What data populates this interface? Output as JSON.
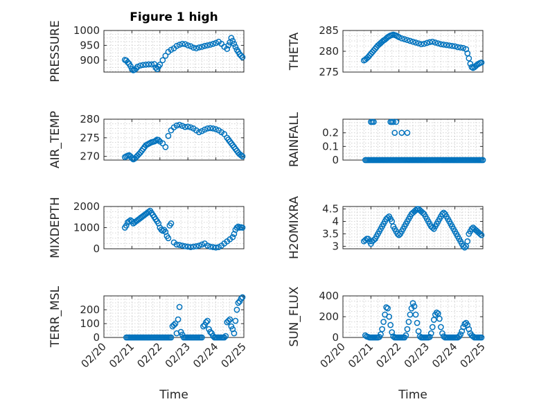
{
  "title": "Figure 1 high",
  "xlabel": "Time",
  "x_ticks": [
    "02/20",
    "02/21",
    "02/22",
    "02/23",
    "02/24",
    "02/25"
  ],
  "colors": {
    "marker": "#0072bd",
    "text": "#262626",
    "grid": "#c8c8c8"
  },
  "chart_data": [
    {
      "type": "scatter",
      "marker": "circle",
      "ylabel": "PRESSURE",
      "ylim": [
        860,
        1000
      ],
      "yticks": [
        900,
        950,
        1000
      ],
      "xlim": [
        0,
        5
      ],
      "x": [
        0.75,
        0.8,
        0.85,
        0.9,
        0.95,
        1.0,
        1.05,
        1.1,
        1.15,
        1.2,
        1.3,
        1.4,
        1.5,
        1.6,
        1.7,
        1.8,
        1.85,
        1.9,
        1.95,
        2.0,
        2.1,
        2.2,
        2.3,
        2.4,
        2.5,
        2.6,
        2.7,
        2.8,
        2.9,
        3.0,
        3.1,
        3.2,
        3.3,
        3.4,
        3.5,
        3.6,
        3.7,
        3.8,
        3.9,
        4.0,
        4.1,
        4.2,
        4.3,
        4.4,
        4.45,
        4.5,
        4.55,
        4.6,
        4.65,
        4.7,
        4.75,
        4.8,
        4.85,
        4.9,
        4.95
      ],
      "y": [
        901,
        899,
        893,
        888,
        880,
        870,
        866,
        868,
        872,
        878,
        882,
        884,
        885,
        886,
        886,
        887,
        875,
        870,
        878,
        885,
        900,
        915,
        928,
        935,
        940,
        948,
        952,
        955,
        954,
        950,
        947,
        942,
        940,
        943,
        945,
        948,
        950,
        952,
        955,
        958,
        962,
        955,
        945,
        938,
        950,
        960,
        975,
        965,
        955,
        945,
        935,
        928,
        920,
        915,
        910
      ]
    },
    {
      "type": "scatter",
      "marker": "circle",
      "ylabel": "THETA",
      "ylim": [
        275,
        285
      ],
      "yticks": [
        275,
        280,
        285
      ],
      "xlim": [
        0,
        5
      ],
      "x": [
        0.75,
        0.8,
        0.85,
        0.9,
        0.95,
        1.0,
        1.05,
        1.1,
        1.15,
        1.2,
        1.25,
        1.3,
        1.35,
        1.4,
        1.45,
        1.5,
        1.55,
        1.6,
        1.65,
        1.7,
        1.75,
        1.8,
        1.85,
        1.9,
        1.95,
        2.0,
        2.1,
        2.2,
        2.3,
        2.4,
        2.5,
        2.6,
        2.7,
        2.8,
        2.9,
        3.0,
        3.1,
        3.2,
        3.3,
        3.4,
        3.5,
        3.6,
        3.7,
        3.8,
        3.9,
        4.0,
        4.1,
        4.2,
        4.3,
        4.4,
        4.45,
        4.5,
        4.55,
        4.6,
        4.65,
        4.7,
        4.75,
        4.8,
        4.85,
        4.9,
        4.95
      ],
      "y": [
        277.8,
        278.0,
        278.3,
        278.6,
        279.0,
        279.4,
        279.8,
        280.2,
        280.6,
        281.0,
        281.4,
        281.7,
        282.0,
        282.3,
        282.6,
        282.8,
        283.1,
        283.4,
        283.6,
        283.8,
        283.9,
        284.0,
        283.9,
        283.8,
        283.6,
        283.4,
        283.1,
        282.9,
        282.7,
        282.5,
        282.3,
        282.1,
        281.9,
        281.7,
        281.8,
        282.0,
        282.2,
        282.3,
        282.1,
        281.9,
        281.7,
        281.6,
        281.5,
        281.4,
        281.3,
        281.2,
        281.0,
        280.9,
        280.8,
        280.5,
        279.5,
        278.3,
        277.0,
        276.2,
        276.0,
        276.2,
        276.5,
        276.8,
        277.0,
        277.2,
        277.3
      ]
    },
    {
      "type": "scatter",
      "marker": "circle",
      "ylabel": "AIR_TEMP",
      "ylim": [
        269,
        280
      ],
      "yticks": [
        270,
        275,
        280
      ],
      "xlim": [
        0,
        5
      ],
      "x": [
        0.75,
        0.8,
        0.85,
        0.9,
        0.95,
        1.0,
        1.05,
        1.1,
        1.15,
        1.2,
        1.25,
        1.3,
        1.35,
        1.4,
        1.45,
        1.5,
        1.55,
        1.6,
        1.65,
        1.7,
        1.75,
        1.8,
        1.85,
        1.9,
        1.95,
        2.0,
        2.1,
        2.2,
        2.3,
        2.4,
        2.5,
        2.6,
        2.7,
        2.8,
        2.9,
        3.0,
        3.1,
        3.2,
        3.3,
        3.4,
        3.5,
        3.6,
        3.7,
        3.8,
        3.9,
        4.0,
        4.1,
        4.2,
        4.3,
        4.4,
        4.45,
        4.5,
        4.55,
        4.6,
        4.65,
        4.7,
        4.75,
        4.8,
        4.85,
        4.9,
        4.95
      ],
      "y": [
        269.8,
        270.0,
        270.2,
        270.3,
        270.0,
        269.5,
        269.2,
        269.4,
        269.8,
        270.2,
        270.6,
        271.0,
        271.5,
        272.0,
        272.5,
        273.0,
        273.2,
        273.4,
        273.6,
        273.8,
        273.9,
        274.0,
        274.2,
        274.5,
        274.4,
        274.0,
        273.5,
        272.5,
        275.5,
        277.0,
        277.8,
        278.3,
        278.5,
        278.2,
        277.9,
        278.0,
        277.8,
        277.5,
        277.0,
        276.5,
        276.8,
        277.2,
        277.5,
        277.6,
        277.5,
        277.3,
        277.0,
        276.5,
        276.0,
        275.0,
        274.5,
        274.0,
        273.5,
        273.0,
        272.5,
        272.0,
        271.5,
        271.0,
        270.6,
        270.3,
        270.0
      ]
    },
    {
      "type": "scatter",
      "marker": "circle",
      "ylabel": "RAINFALL",
      "ylim": [
        0,
        0.3
      ],
      "yticks": [
        0,
        0.1,
        0.2
      ],
      "xlim": [
        0,
        5
      ],
      "x": [
        0.8,
        0.85,
        0.9,
        0.95,
        1.0,
        1.05,
        1.1,
        1.15,
        1.2,
        1.25,
        1.3,
        1.35,
        1.4,
        1.45,
        1.5,
        1.55,
        1.6,
        1.65,
        1.7,
        1.75,
        1.8,
        1.85,
        1.9,
        1.95,
        2.0,
        2.05,
        2.1,
        2.15,
        2.2,
        2.25,
        2.3,
        2.35,
        2.4,
        2.45,
        2.5,
        2.55,
        2.6,
        2.65,
        2.7,
        2.75,
        2.8,
        2.85,
        2.9,
        2.95,
        3.0,
        3.05,
        3.1,
        3.15,
        3.2,
        3.25,
        3.3,
        3.35,
        3.4,
        3.45,
        3.5,
        3.55,
        3.6,
        3.65,
        3.7,
        3.75,
        3.8,
        3.85,
        3.9,
        3.95,
        4.0,
        4.05,
        4.1,
        4.15,
        4.2,
        4.25,
        4.3,
        4.35,
        4.4,
        4.45,
        4.5,
        4.55,
        4.6,
        4.65,
        4.7,
        4.75,
        4.8,
        4.85,
        4.9,
        4.95,
        5.0,
        1.0,
        1.05,
        1.1,
        1.7,
        1.75,
        1.8,
        1.85,
        1.9,
        2.1,
        2.3
      ],
      "y": [
        0,
        0,
        0,
        0,
        0,
        0,
        0,
        0,
        0,
        0,
        0,
        0,
        0,
        0,
        0,
        0,
        0,
        0,
        0,
        0,
        0,
        0,
        0,
        0,
        0,
        0,
        0,
        0,
        0,
        0,
        0,
        0,
        0,
        0,
        0,
        0,
        0,
        0,
        0,
        0,
        0,
        0,
        0,
        0,
        0,
        0,
        0,
        0,
        0,
        0,
        0,
        0,
        0,
        0,
        0,
        0,
        0,
        0,
        0,
        0,
        0,
        0,
        0,
        0,
        0,
        0,
        0,
        0,
        0,
        0,
        0,
        0,
        0,
        0,
        0,
        0,
        0,
        0,
        0,
        0,
        0,
        0,
        0,
        0,
        0,
        0.28,
        0.28,
        0.28,
        0.28,
        0.28,
        0.28,
        0.2,
        0.28,
        0.2,
        0.2
      ]
    },
    {
      "type": "scatter",
      "marker": "circle",
      "ylabel": "MIXDEPTH",
      "ylim": [
        0,
        2000
      ],
      "yticks": [
        0,
        1000,
        2000
      ],
      "xlim": [
        0,
        5
      ],
      "x": [
        0.75,
        0.8,
        0.85,
        0.9,
        0.95,
        1.0,
        1.05,
        1.1,
        1.15,
        1.2,
        1.25,
        1.3,
        1.35,
        1.4,
        1.45,
        1.5,
        1.55,
        1.6,
        1.65,
        1.7,
        1.75,
        1.8,
        1.85,
        1.9,
        1.95,
        2.0,
        2.05,
        2.1,
        2.15,
        2.2,
        2.25,
        2.3,
        2.35,
        2.4,
        2.5,
        2.6,
        2.7,
        2.8,
        2.9,
        3.0,
        3.1,
        3.2,
        3.3,
        3.4,
        3.5,
        3.6,
        3.7,
        3.8,
        3.9,
        4.0,
        4.1,
        4.2,
        4.3,
        4.4,
        4.5,
        4.6,
        4.65,
        4.7,
        4.75,
        4.8,
        4.85,
        4.9,
        4.95
      ],
      "y": [
        1000,
        1100,
        1250,
        1300,
        1350,
        1300,
        1200,
        1250,
        1300,
        1350,
        1400,
        1450,
        1500,
        1550,
        1600,
        1650,
        1700,
        1750,
        1800,
        1700,
        1600,
        1500,
        1400,
        1300,
        1200,
        1000,
        900,
        850,
        900,
        800,
        600,
        500,
        1100,
        1200,
        300,
        200,
        180,
        150,
        120,
        100,
        80,
        100,
        120,
        150,
        200,
        250,
        150,
        100,
        80,
        60,
        80,
        150,
        250,
        350,
        450,
        550,
        700,
        900,
        1000,
        1050,
        1000,
        1020,
        1000
      ]
    },
    {
      "type": "scatter",
      "marker": "circle",
      "ylabel": "H2OMIXRA",
      "ylim": [
        2.9,
        4.6
      ],
      "yticks": [
        3,
        3.5,
        4,
        4.5
      ],
      "xlim": [
        0,
        5
      ],
      "x": [
        0.75,
        0.8,
        0.85,
        0.9,
        0.95,
        1.0,
        1.05,
        1.1,
        1.15,
        1.2,
        1.25,
        1.3,
        1.35,
        1.4,
        1.45,
        1.5,
        1.55,
        1.6,
        1.65,
        1.7,
        1.75,
        1.8,
        1.85,
        1.9,
        1.95,
        2.0,
        2.05,
        2.1,
        2.15,
        2.2,
        2.25,
        2.3,
        2.35,
        2.4,
        2.45,
        2.5,
        2.55,
        2.6,
        2.65,
        2.7,
        2.75,
        2.8,
        2.85,
        2.9,
        2.95,
        3.0,
        3.05,
        3.1,
        3.15,
        3.2,
        3.25,
        3.3,
        3.35,
        3.4,
        3.45,
        3.5,
        3.55,
        3.6,
        3.65,
        3.7,
        3.75,
        3.8,
        3.85,
        3.9,
        3.95,
        4.0,
        4.05,
        4.1,
        4.15,
        4.2,
        4.25,
        4.3,
        4.35,
        4.4,
        4.45,
        4.5,
        4.55,
        4.6,
        4.65,
        4.7,
        4.75,
        4.8,
        4.85,
        4.9,
        4.95
      ],
      "y": [
        3.2,
        3.25,
        3.3,
        3.3,
        3.2,
        3.1,
        3.2,
        3.25,
        3.3,
        3.4,
        3.5,
        3.6,
        3.7,
        3.8,
        3.9,
        4.0,
        4.1,
        4.15,
        4.2,
        4.1,
        4.0,
        3.8,
        3.7,
        3.6,
        3.5,
        3.45,
        3.5,
        3.6,
        3.7,
        3.8,
        3.9,
        4.0,
        4.1,
        4.2,
        4.3,
        4.35,
        4.4,
        4.45,
        4.5,
        4.5,
        4.45,
        4.4,
        4.35,
        4.3,
        4.2,
        4.1,
        4.0,
        3.9,
        3.8,
        3.75,
        3.7,
        3.8,
        3.9,
        4.0,
        4.1,
        4.2,
        4.3,
        4.35,
        4.3,
        4.2,
        4.1,
        4.0,
        3.9,
        3.8,
        3.7,
        3.6,
        3.5,
        3.4,
        3.3,
        3.2,
        3.1,
        3.0,
        2.95,
        3.0,
        3.2,
        3.5,
        3.6,
        3.7,
        3.75,
        3.7,
        3.65,
        3.6,
        3.55,
        3.5,
        3.45
      ]
    },
    {
      "type": "scatter",
      "marker": "circle",
      "ylabel": "TERR_MSL",
      "ylim": [
        0,
        300
      ],
      "yticks": [
        0,
        100,
        200
      ],
      "xlim": [
        0,
        5
      ],
      "x": [
        0.8,
        0.85,
        0.9,
        0.95,
        1.0,
        1.05,
        1.1,
        1.15,
        1.2,
        1.25,
        1.3,
        1.35,
        1.4,
        1.45,
        1.5,
        1.55,
        1.6,
        1.65,
        1.7,
        1.75,
        1.8,
        1.85,
        1.9,
        1.95,
        2.0,
        2.05,
        2.1,
        2.15,
        2.2,
        2.25,
        2.3,
        2.35,
        2.4,
        2.45,
        2.5,
        2.55,
        2.6,
        2.65,
        2.7,
        2.75,
        2.8,
        2.85,
        2.9,
        2.95,
        3.0,
        3.05,
        3.1,
        3.15,
        3.2,
        3.25,
        3.3,
        3.35,
        3.4,
        3.45,
        3.5,
        3.55,
        3.6,
        3.65,
        3.7,
        3.75,
        3.8,
        3.85,
        3.9,
        3.95,
        4.0,
        4.05,
        4.1,
        4.15,
        4.2,
        4.25,
        4.3,
        4.35,
        4.4,
        4.45,
        4.5,
        4.55,
        4.6,
        4.65,
        4.7,
        4.75,
        4.8,
        4.85,
        4.9,
        4.95
      ],
      "y": [
        0,
        0,
        0,
        0,
        0,
        0,
        0,
        0,
        0,
        0,
        0,
        0,
        0,
        0,
        0,
        0,
        0,
        0,
        0,
        0,
        0,
        0,
        0,
        0,
        0,
        0,
        0,
        0,
        0,
        0,
        0,
        0,
        0,
        80,
        90,
        100,
        30,
        130,
        220,
        40,
        20,
        0,
        0,
        0,
        0,
        0,
        0,
        0,
        0,
        0,
        0,
        0,
        0,
        0,
        0,
        80,
        90,
        110,
        120,
        60,
        40,
        30,
        10,
        0,
        0,
        0,
        0,
        0,
        0,
        0,
        0,
        10,
        110,
        120,
        130,
        80,
        60,
        30,
        120,
        200,
        250,
        260,
        280,
        290
      ]
    },
    {
      "type": "scatter",
      "marker": "circle",
      "ylabel": "SUN_FLUX",
      "ylim": [
        0,
        400
      ],
      "yticks": [
        0,
        200,
        400
      ],
      "xlim": [
        0,
        5
      ],
      "x": [
        0.8,
        0.85,
        0.9,
        0.95,
        1.0,
        1.05,
        1.1,
        1.15,
        1.2,
        1.25,
        1.3,
        1.35,
        1.4,
        1.45,
        1.5,
        1.55,
        1.6,
        1.65,
        1.7,
        1.75,
        1.8,
        1.85,
        1.9,
        1.95,
        2.0,
        2.05,
        2.1,
        2.15,
        2.2,
        2.25,
        2.3,
        2.35,
        2.4,
        2.45,
        2.5,
        2.55,
        2.6,
        2.65,
        2.7,
        2.75,
        2.8,
        2.85,
        2.9,
        2.95,
        3.0,
        3.05,
        3.1,
        3.15,
        3.2,
        3.25,
        3.3,
        3.35,
        3.4,
        3.45,
        3.5,
        3.55,
        3.6,
        3.65,
        3.7,
        3.75,
        3.8,
        3.85,
        3.9,
        3.95,
        4.0,
        4.05,
        4.1,
        4.15,
        4.2,
        4.25,
        4.3,
        4.35,
        4.4,
        4.45,
        4.5,
        4.55,
        4.6,
        4.65,
        4.7,
        4.75,
        4.8,
        4.85,
        4.9,
        4.95
      ],
      "y": [
        20,
        10,
        5,
        0,
        0,
        0,
        0,
        0,
        0,
        0,
        5,
        30,
        80,
        150,
        220,
        290,
        280,
        200,
        120,
        50,
        10,
        0,
        0,
        0,
        0,
        0,
        0,
        0,
        0,
        20,
        80,
        150,
        220,
        280,
        330,
        300,
        220,
        140,
        60,
        10,
        0,
        0,
        0,
        0,
        0,
        0,
        5,
        40,
        100,
        170,
        220,
        240,
        230,
        180,
        100,
        40,
        10,
        0,
        0,
        0,
        0,
        0,
        0,
        0,
        0,
        0,
        0,
        10,
        30,
        60,
        100,
        130,
        140,
        120,
        80,
        40,
        20,
        10,
        0,
        0,
        0,
        0,
        0,
        0
      ]
    }
  ]
}
